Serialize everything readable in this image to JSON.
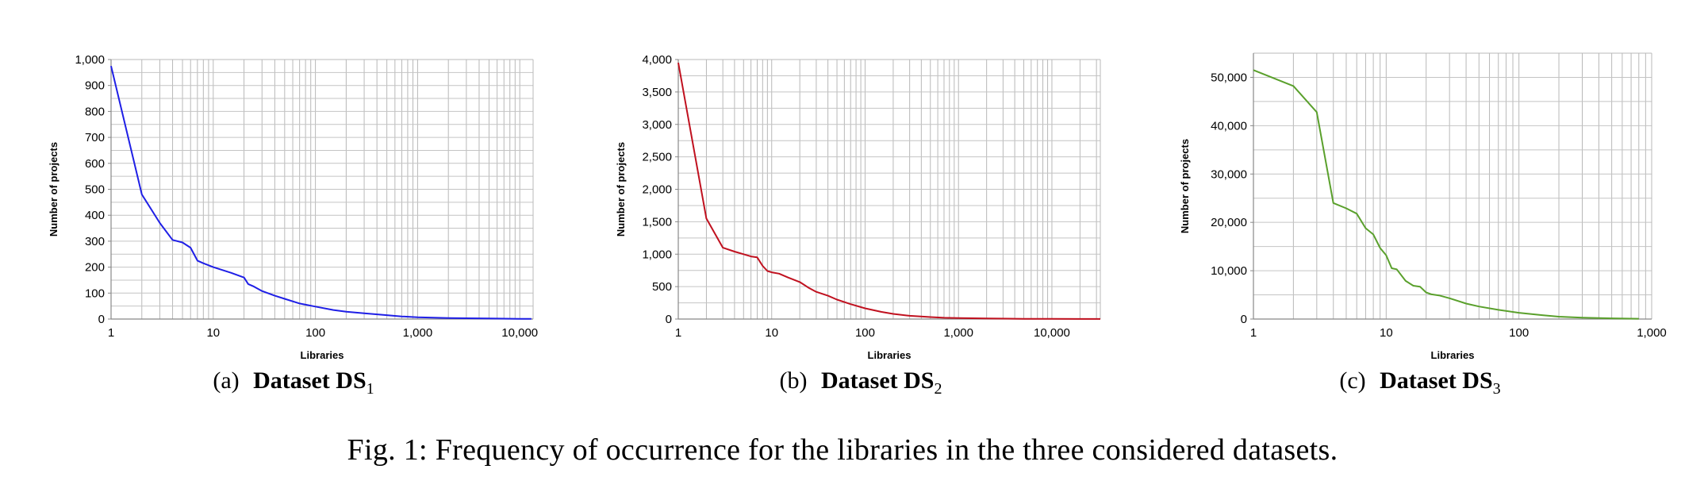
{
  "figure_caption": "Fig. 1: Frequency of occurrence for the libraries in the three considered datasets.",
  "panels": [
    {
      "label": "(a)",
      "title": "Dataset DS",
      "subscript": "1"
    },
    {
      "label": "(b)",
      "title": "Dataset DS",
      "subscript": "2"
    },
    {
      "label": "(c)",
      "title": "Dataset DS",
      "subscript": "3"
    }
  ],
  "chart_data": [
    {
      "type": "line",
      "color": "#1f1fe6",
      "xlabel": "Libraries",
      "ylabel": "Number of projects",
      "xscale": "log",
      "xlim": [
        1,
        13500
      ],
      "ylim": [
        0,
        1000
      ],
      "grid": true,
      "x_ticks": [
        1,
        10,
        100,
        1000,
        10000
      ],
      "x_tick_labels": [
        "1",
        "10",
        "100",
        "1,000",
        "10,000"
      ],
      "y_ticks": [
        0,
        100,
        200,
        300,
        400,
        500,
        600,
        700,
        800,
        900,
        1000
      ],
      "y_tick_labels": [
        "0",
        "100",
        "200",
        "300",
        "400",
        "500",
        "600",
        "700",
        "800",
        "900",
        "1,000"
      ],
      "x": [
        1,
        2,
        3,
        4,
        5,
        6,
        7,
        8,
        10,
        15,
        20,
        22,
        25,
        30,
        40,
        50,
        70,
        100,
        150,
        200,
        300,
        500,
        700,
        1000,
        2000,
        3000,
        5000,
        10000,
        13000
      ],
      "y": [
        975,
        480,
        370,
        305,
        295,
        275,
        225,
        215,
        200,
        178,
        160,
        135,
        125,
        108,
        90,
        78,
        60,
        48,
        35,
        28,
        22,
        15,
        10,
        7,
        4,
        3,
        2,
        1,
        1
      ]
    },
    {
      "type": "line",
      "color": "#c0111f",
      "xlabel": "Libraries",
      "ylabel": "Number of projects",
      "xscale": "log",
      "xlim": [
        1,
        33000
      ],
      "ylim": [
        0,
        4000
      ],
      "grid": true,
      "x_ticks": [
        1,
        10,
        100,
        1000,
        10000
      ],
      "x_tick_labels": [
        "1",
        "10",
        "100",
        "1,000",
        "10,000"
      ],
      "y_ticks": [
        0,
        500,
        1000,
        1500,
        2000,
        2500,
        3000,
        3500,
        4000
      ],
      "y_tick_labels": [
        "0",
        "500",
        "1,000",
        "1,500",
        "2,000",
        "2,500",
        "3,000",
        "3,500",
        "4,000"
      ],
      "x": [
        1,
        2,
        3,
        4,
        5,
        6,
        7,
        8,
        9,
        10,
        12,
        15,
        20,
        25,
        30,
        40,
        50,
        70,
        100,
        150,
        200,
        300,
        500,
        700,
        1000,
        2000,
        5000,
        10000,
        20000,
        33000
      ],
      "y": [
        3950,
        1550,
        1100,
        1040,
        1000,
        965,
        950,
        820,
        740,
        720,
        700,
        640,
        570,
        480,
        420,
        360,
        300,
        230,
        165,
        110,
        80,
        50,
        30,
        20,
        15,
        8,
        4,
        2,
        1,
        1
      ]
    },
    {
      "type": "line",
      "color": "#5aa02c",
      "xlabel": "Libraries",
      "ylabel": "Number of projects",
      "xscale": "log",
      "xlim": [
        1,
        1000
      ],
      "ylim": [
        0,
        55000
      ],
      "grid": true,
      "x_ticks": [
        1,
        10,
        100,
        1000
      ],
      "x_tick_labels": [
        "1",
        "10",
        "100",
        "1,000"
      ],
      "y_ticks": [
        0,
        10000,
        20000,
        30000,
        40000,
        50000
      ],
      "y_tick_labels": [
        "0",
        "10,000",
        "20,000",
        "30,000",
        "40,000",
        "50,000"
      ],
      "x": [
        1,
        2,
        3,
        4,
        5,
        6,
        7,
        8,
        9,
        10,
        11,
        12,
        14,
        16,
        18,
        20,
        22,
        25,
        30,
        40,
        50,
        70,
        100,
        150,
        200,
        300,
        500,
        700,
        800
      ],
      "y": [
        51500,
        48200,
        42800,
        24000,
        22900,
        21800,
        18800,
        17500,
        14700,
        13200,
        10500,
        10300,
        7900,
        6900,
        6700,
        5500,
        5100,
        4900,
        4300,
        3200,
        2600,
        1900,
        1300,
        800,
        500,
        300,
        150,
        80,
        60
      ]
    }
  ]
}
